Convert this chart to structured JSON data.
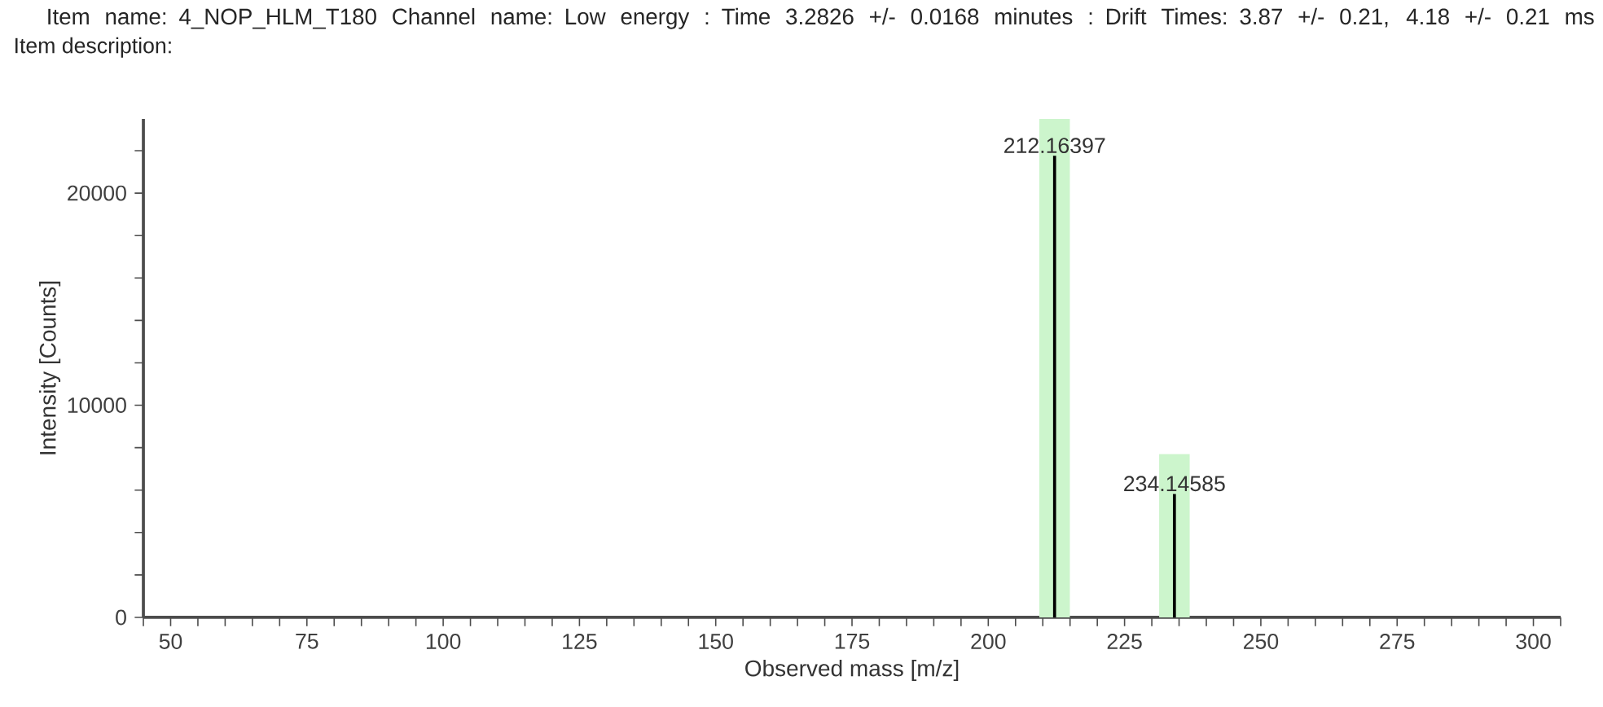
{
  "chart_data": {
    "type": "bar",
    "title": "Item name: 4_NOP_HLM_T180   Channel name: Low energy : Time 3.2826 +/- 0.0168 minutes : Drift Times: 3.87 +/- 0.21, 4.18 +/- 0.21 ms",
    "subtitle": "Item description:",
    "xlabel": "Observed mass [m/z]",
    "ylabel": "Intensity [Counts]",
    "x": [
      212.16397,
      234.14585
    ],
    "series": [
      {
        "color": "#ccf5cc",
        "values": [
          23500,
          7700
        ]
      },
      {
        "color": "#000000",
        "values": [
          21760,
          5820
        ]
      }
    ],
    "annotations": [
      {
        "text": "212.16397",
        "x": 212.16397,
        "y": 21760
      },
      {
        "text": "234.14585",
        "x": 234.14585,
        "y": 5820
      }
    ],
    "xlim": [
      45,
      305
    ],
    "ylim": [
      0,
      23500
    ],
    "xticks": [
      {
        "value": 45,
        "label": null
      },
      50,
      {
        "value": 55,
        "label": null
      },
      {
        "value": 60,
        "label": null
      },
      {
        "value": 65,
        "label": null
      },
      {
        "value": 70,
        "label": null
      },
      75,
      {
        "value": 80,
        "label": null
      },
      {
        "value": 85,
        "label": null
      },
      {
        "value": 90,
        "label": null
      },
      {
        "value": 95,
        "label": null
      },
      100,
      {
        "value": 105,
        "label": null
      },
      {
        "value": 110,
        "label": null
      },
      {
        "value": 115,
        "label": null
      },
      {
        "value": 120,
        "label": null
      },
      125,
      {
        "value": 130,
        "label": null
      },
      {
        "value": 135,
        "label": null
      },
      {
        "value": 140,
        "label": null
      },
      {
        "value": 145,
        "label": null
      },
      150,
      {
        "value": 155,
        "label": null
      },
      {
        "value": 160,
        "label": null
      },
      {
        "value": 165,
        "label": null
      },
      {
        "value": 170,
        "label": null
      },
      175,
      {
        "value": 180,
        "label": null
      },
      {
        "value": 185,
        "label": null
      },
      {
        "value": 190,
        "label": null
      },
      {
        "value": 195,
        "label": null
      },
      200,
      {
        "value": 205,
        "label": null
      },
      {
        "value": 210,
        "label": null
      },
      {
        "value": 215,
        "label": null
      },
      {
        "value": 220,
        "label": null
      },
      225,
      {
        "value": 230,
        "label": null
      },
      {
        "value": 235,
        "label": null
      },
      {
        "value": 240,
        "label": null
      },
      {
        "value": 245,
        "label": null
      },
      250,
      {
        "value": 255,
        "label": null
      },
      {
        "value": 260,
        "label": null
      },
      {
        "value": 265,
        "label": null
      },
      {
        "value": 270,
        "label": null
      },
      275,
      {
        "value": 280,
        "label": null
      },
      {
        "value": 285,
        "label": null
      },
      {
        "value": 290,
        "label": null
      },
      {
        "value": 295,
        "label": null
      },
      300,
      {
        "value": 305,
        "label": null
      }
    ],
    "yticks": [
      0,
      {
        "value": 2000,
        "label": null
      },
      {
        "value": 4000,
        "label": null
      },
      {
        "value": 6000,
        "label": null
      },
      {
        "value": 8000,
        "label": null
      },
      10000,
      {
        "value": 12000,
        "label": null
      },
      {
        "value": 14000,
        "label": null
      },
      {
        "value": 16000,
        "label": null
      },
      {
        "value": 18000,
        "label": null
      },
      20000,
      {
        "value": 22000,
        "label": null
      }
    ],
    "grid": false
  }
}
